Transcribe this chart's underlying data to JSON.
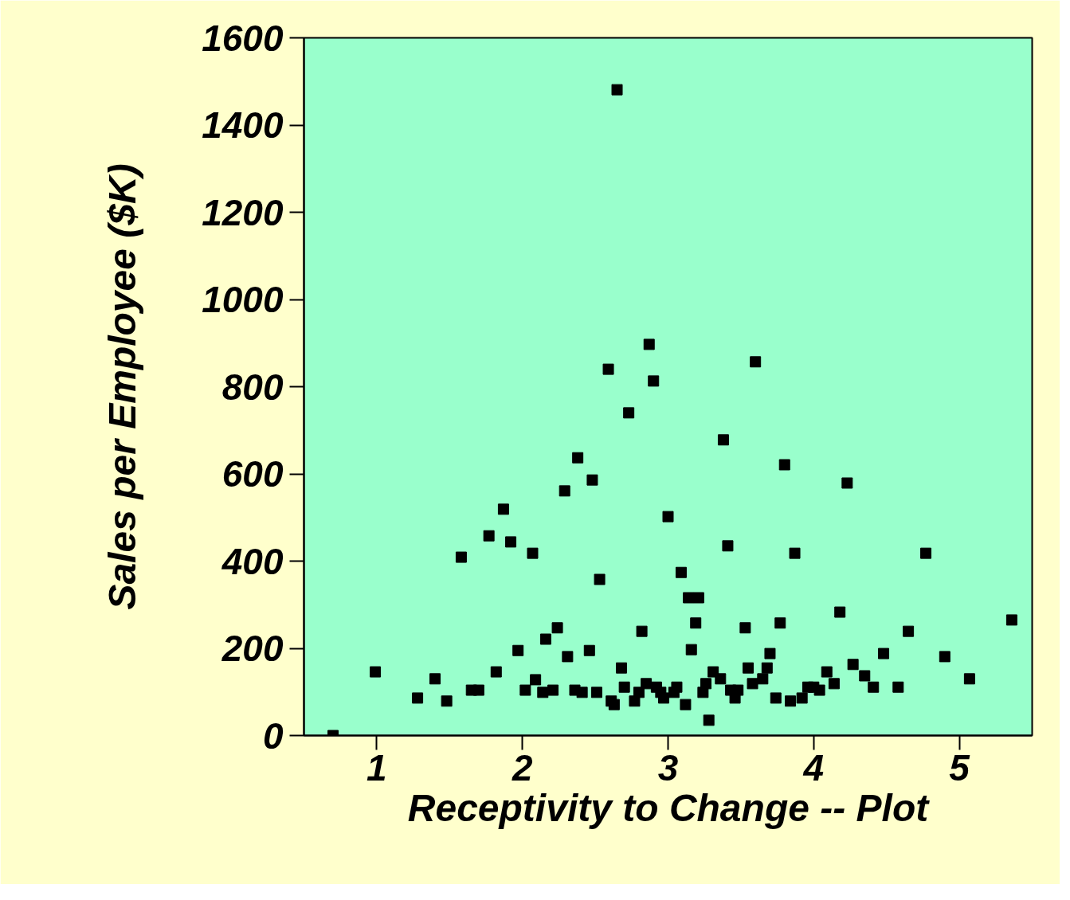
{
  "chart_data": {
    "type": "scatter",
    "xlabel": "Receptivity to Change -- Plot",
    "ylabel": "Sales per Employee ($K)",
    "x": [
      0.7,
      0.99,
      1.28,
      1.4,
      1.48,
      1.58,
      1.65,
      1.7,
      1.77,
      1.82,
      1.87,
      1.92,
      1.97,
      2.02,
      2.07,
      2.09,
      2.14,
      2.16,
      2.21,
      2.24,
      2.29,
      2.31,
      2.36,
      2.38,
      2.41,
      2.46,
      2.48,
      2.51,
      2.53,
      2.59,
      2.61,
      2.63,
      2.65,
      2.68,
      2.7,
      2.73,
      2.77,
      2.8,
      2.82,
      2.85,
      2.87,
      2.9,
      2.92,
      2.95,
      2.97,
      3.0,
      3.04,
      3.06,
      3.09,
      3.12,
      3.14,
      3.16,
      3.19,
      3.21,
      3.24,
      3.26,
      3.28,
      3.31,
      3.36,
      3.38,
      3.41,
      3.43,
      3.46,
      3.48,
      3.53,
      3.55,
      3.58,
      3.6,
      3.65,
      3.68,
      3.7,
      3.74,
      3.77,
      3.8,
      3.84,
      3.87,
      3.92,
      3.96,
      4.0,
      4.04,
      4.09,
      4.14,
      4.18,
      4.23,
      4.27,
      4.35,
      4.41,
      4.48,
      4.58,
      4.65,
      4.77,
      4.9,
      5.07,
      5.36
    ],
    "series": [
      {
        "color": "#000000",
        "values": [
          0,
          146,
          86,
          130,
          79,
          409,
          104,
          104,
          458,
          146,
          519,
          444,
          195,
          104,
          418,
          128,
          99,
          221,
          104,
          247,
          561,
          181,
          104,
          637,
          99,
          195,
          586,
          99,
          358,
          840,
          79,
          71,
          1481,
          155,
          111,
          740,
          79,
          99,
          239,
          119,
          897,
          813,
          111,
          99,
          86,
          502,
          99,
          111,
          374,
          71,
          316,
          197,
          258,
          316,
          99,
          119,
          35,
          146,
          130,
          678,
          435,
          104,
          86,
          104,
          247,
          155,
          119,
          857,
          130,
          155,
          188,
          86,
          258,
          621,
          79,
          418,
          86,
          111,
          111,
          104,
          146,
          119,
          283,
          579,
          163,
          137,
          111,
          188,
          111,
          239,
          418,
          181,
          130,
          265
        ]
      }
    ],
    "xlim": [
      0.5,
      5.5
    ],
    "ylim": [
      0,
      1600
    ],
    "xticks": [
      1,
      2,
      3,
      4,
      5
    ],
    "yticks": [
      0,
      200,
      400,
      600,
      800,
      1000,
      1200,
      1400,
      1600
    ],
    "marker": "square",
    "grid": false
  }
}
